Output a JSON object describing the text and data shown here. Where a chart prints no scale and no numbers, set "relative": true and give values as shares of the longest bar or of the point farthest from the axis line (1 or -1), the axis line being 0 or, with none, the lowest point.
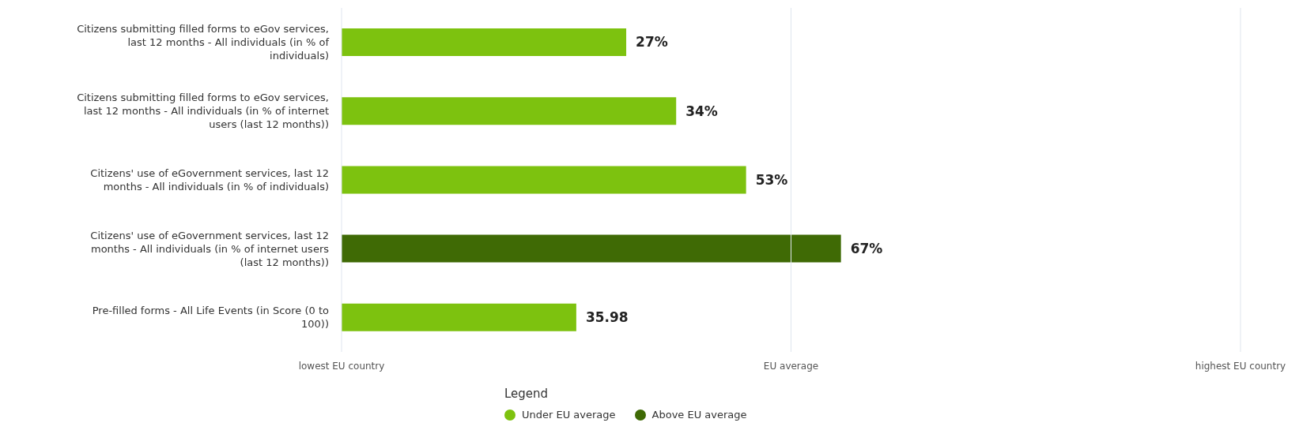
{
  "chart_data": {
    "type": "bar",
    "orientation": "horizontal",
    "stacked": true,
    "relative": true,
    "categories": [
      "Citizens submitting filled forms to eGov services, last 12 months - All individuals (in % of individuals)",
      "Citizens submitting filled forms to eGov services, last 12 months - All individuals (in % of internet users (last 12 months))",
      "Citizens' use of eGovernment services, last 12 months - All individuals (in % of individuals)",
      "Citizens' use of eGovernment services, last 12 months - All individuals (in % of internet users (last 12 months))",
      "Pre-filled forms - All Life Events (in Score (0 to 100))"
    ],
    "series": [
      {
        "name": "Under EU average",
        "color": "#7dc20f",
        "values": [
          0.57,
          0.67,
          0.81,
          null,
          0.47
        ]
      },
      {
        "name": "Above EU average",
        "color": "#3f6a05",
        "values": [
          null,
          null,
          null,
          1,
          null
        ]
      }
    ],
    "annotations": [
      {
        "text": "27%",
        "x": 0.57,
        "y": "Citizens submitting filled forms to eGov services, last 12 months - All individuals (in % of individuals)"
      },
      {
        "text": "34%",
        "x": 0.67,
        "y": "Citizens submitting filled forms to eGov services, last 12 months - All individuals (in % of internet users (last 12 months))"
      },
      {
        "text": "53%",
        "x": 0.81,
        "y": "Citizens' use of eGovernment services, last 12 months - All individuals (in % of individuals)"
      },
      {
        "text": "67%",
        "x": 1,
        "y": "Citizens' use of eGovernment services, last 12 months - All individuals (in % of internet users (last 12 months))"
      },
      {
        "text": "35.98",
        "x": 0.47,
        "y": "Pre-filled forms - All Life Events (in Score (0 to 100))"
      },
      "lowest EU country"
    ],
    "ref_lines": [
      {
        "axis": "x",
        "value": 0.9,
        "label": "EU average",
        "color": "#dfe5ee"
      },
      {
        "axis": "x",
        "value": 1.8,
        "label": "highest EU country",
        "color": "#dfe5ee"
      }
    ],
    "legend": "bottom",
    "legend_title": "Legend"
  }
}
